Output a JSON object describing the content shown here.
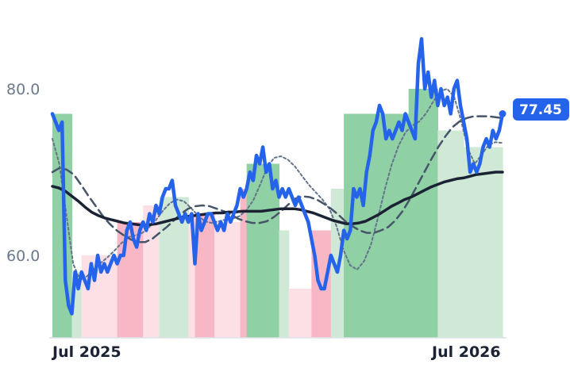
{
  "chart_data": {
    "type": "line",
    "x_axis": {
      "start": "2025-06",
      "end": "2026-07",
      "tick_labels": [
        "Jul 2025",
        "Jul 2026"
      ]
    },
    "y_axis": {
      "range": [
        50,
        90
      ],
      "tick_values": [
        60,
        80
      ],
      "tick_labels": [
        "60.0",
        "80.0"
      ]
    },
    "last_value_label": "77.45",
    "grid": false,
    "colors": {
      "price": "#2563eb",
      "ma_long": "#1b2233",
      "ma_mid": "#475569",
      "ma_short": "#64748b",
      "label_bg": "#2563eb",
      "green_strong": "#8fd0a4",
      "green_light": "#cfe9d6",
      "red_strong": "#f8b7c5",
      "red_light": "#fde0e6",
      "axis": "#dde3ea"
    },
    "series": [
      {
        "role": "price",
        "values": [
          77,
          76,
          75,
          76,
          57,
          54,
          53,
          58,
          56,
          58,
          57,
          56,
          59,
          57,
          60,
          58,
          59,
          58,
          59,
          60,
          59,
          60,
          60,
          63,
          64,
          62,
          61,
          63,
          64,
          63,
          65,
          64,
          66,
          65,
          67,
          68,
          68,
          69,
          66,
          65,
          64,
          65,
          64,
          65,
          59,
          65,
          63,
          64,
          65,
          65,
          64,
          63,
          64,
          63,
          65,
          64,
          65,
          66,
          68,
          67,
          68,
          70,
          69,
          72,
          71,
          73,
          70,
          71,
          68,
          69,
          67,
          68,
          67,
          68,
          67,
          66,
          67,
          66,
          65,
          64,
          62,
          60,
          57,
          56,
          56,
          58,
          60,
          59,
          58,
          60,
          63,
          62,
          63,
          68,
          67,
          68,
          66,
          70,
          72,
          75,
          76,
          78,
          77,
          74,
          75,
          74,
          75,
          76,
          75,
          77,
          76,
          75,
          74,
          83,
          86,
          80,
          82,
          79,
          81,
          78,
          80,
          78,
          79,
          77,
          80,
          81,
          78,
          76,
          74,
          70,
          71,
          70,
          71,
          73,
          74,
          73,
          75,
          74,
          75,
          77
        ]
      },
      {
        "role": "ma_long",
        "values": [
          68.3,
          68.1,
          67.7,
          67.1,
          66.5,
          65.8,
          65.2,
          64.8,
          64.5,
          64.3,
          64.1,
          63.9,
          63.8,
          63.7,
          63.6,
          63.7,
          63.8,
          64,
          64.2,
          64.4,
          64.6,
          64.7,
          64.8,
          64.9,
          65,
          65.1,
          65.1,
          65.2,
          65.2,
          65.3,
          65.3,
          65.3,
          65.3,
          65.4,
          65.5,
          65.6,
          65.6,
          65.6,
          65.5,
          65.3,
          65.1,
          64.8,
          64.5,
          64.2,
          64,
          63.8,
          63.8,
          63.9,
          64.1,
          64.5,
          64.9,
          65.4,
          65.9,
          66.3,
          66.7,
          67,
          67.4,
          67.8,
          68.2,
          68.5,
          68.8,
          69,
          69.2,
          69.3,
          69.5,
          69.7,
          69.8,
          69.9,
          70,
          70
        ]
      },
      {
        "role": "ma_mid",
        "values": [
          70,
          70.5,
          70.3,
          69.7,
          68.5,
          67.2,
          66,
          64.8,
          63.8,
          63,
          62.4,
          61.9,
          61.6,
          61.6,
          62,
          62.7,
          63.4,
          64.2,
          65,
          65.6,
          65.9,
          66,
          65.9,
          65.6,
          65.3,
          64.9,
          64.4,
          64.1,
          63.9,
          63.9,
          64.1,
          64.6,
          65.3,
          66.1,
          66.8,
          67.1,
          67,
          66.7,
          66.2,
          65.6,
          64.9,
          64.1,
          63.5,
          63,
          62.7,
          62.7,
          63,
          63.4,
          64.2,
          65.3,
          66.7,
          68.3,
          69.9,
          71.5,
          73,
          74.3,
          75.4,
          76.1,
          76.5,
          76.7,
          76.7,
          76.7,
          76.6,
          76.5
        ]
      },
      {
        "role": "ma_short",
        "values": [
          74,
          71,
          65,
          59,
          57,
          57.5,
          58.3,
          59.1,
          59.8,
          60.6,
          61.5,
          62.2,
          62.4,
          62.7,
          63.4,
          64.3,
          65.4,
          66.3,
          66.7,
          66.5,
          65.7,
          64.8,
          64.1,
          63.9,
          64.1,
          64.3,
          64.4,
          64.7,
          65.4,
          66.6,
          68.5,
          70.5,
          71.7,
          71.9,
          71.5,
          70.7,
          69.6,
          68.5,
          67.6,
          66.7,
          65.6,
          63.6,
          60.7,
          58.8,
          58.3,
          59.3,
          61.3,
          64.5,
          67.9,
          70.9,
          73.2,
          74.8,
          75.6,
          76.1,
          77.1,
          78.5,
          79.7,
          80,
          79.1,
          76.2,
          72.8,
          71,
          72.1,
          73.3,
          73.6,
          73.5
        ]
      }
    ],
    "background_regions": [
      {
        "from": 0,
        "to": 6,
        "tone": "green_strong",
        "level": 77
      },
      {
        "from": 6,
        "to": 9,
        "tone": "green_light",
        "level": 58
      },
      {
        "from": 9,
        "to": 20,
        "tone": "red_light",
        "level": 60
      },
      {
        "from": 20,
        "to": 28,
        "tone": "red_strong",
        "level": 64
      },
      {
        "from": 28,
        "to": 33,
        "tone": "red_light",
        "level": 66
      },
      {
        "from": 33,
        "to": 42,
        "tone": "green_light",
        "level": 67
      },
      {
        "from": 42,
        "to": 44,
        "tone": "red_light",
        "level": 65
      },
      {
        "from": 44,
        "to": 50,
        "tone": "red_strong",
        "level": 65
      },
      {
        "from": 50,
        "to": 58,
        "tone": "red_light",
        "level": 64
      },
      {
        "from": 58,
        "to": 60,
        "tone": "red_strong",
        "level": 68
      },
      {
        "from": 60,
        "to": 70,
        "tone": "green_strong",
        "level": 71
      },
      {
        "from": 70,
        "to": 73,
        "tone": "green_light",
        "level": 63
      },
      {
        "from": 73,
        "to": 80,
        "tone": "red_light",
        "level": 56
      },
      {
        "from": 80,
        "to": 86,
        "tone": "red_strong",
        "level": 63
      },
      {
        "from": 86,
        "to": 90,
        "tone": "green_light",
        "level": 68
      },
      {
        "from": 90,
        "to": 110,
        "tone": "green_strong",
        "level": 77
      },
      {
        "from": 110,
        "to": 119,
        "tone": "green_strong",
        "level": 80
      },
      {
        "from": 119,
        "to": 127,
        "tone": "green_light",
        "level": 75
      },
      {
        "from": 127,
        "to": 130,
        "tone": "green_light",
        "level": 73
      },
      {
        "from": 130,
        "to": 139,
        "tone": "green_light",
        "level": 73
      }
    ]
  }
}
